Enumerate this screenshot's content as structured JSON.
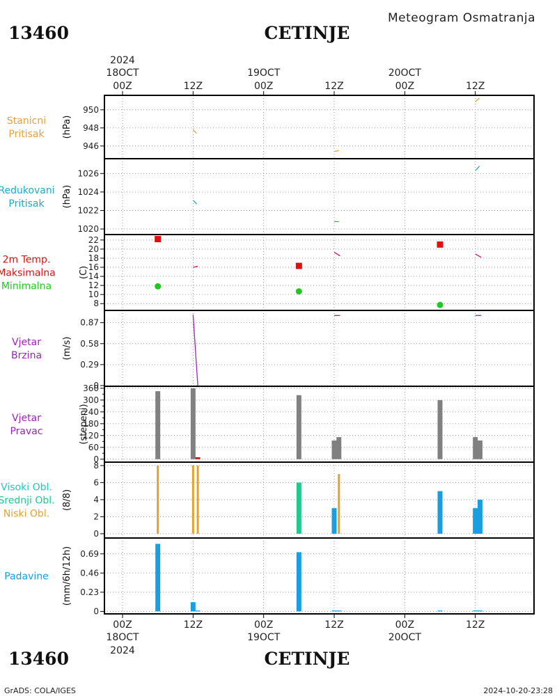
{
  "header": {
    "station_id": "13460",
    "station_name": "CETINJE",
    "product": "Meteogram Osmatranja"
  },
  "footer": {
    "station_id": "13460",
    "station_name": "CETINJE",
    "left": "GrADS: COLA/IGES",
    "right": "2024-10-20-23:28"
  },
  "time_axis": {
    "top_labels": [
      {
        "line1": "2024",
        "line2": "18OCT",
        "line3": "00Z"
      },
      {
        "line1": "",
        "line2": "",
        "line3": "12Z"
      },
      {
        "line1": "",
        "line2": "19OCT",
        "line3": "00Z"
      },
      {
        "line1": "",
        "line2": "",
        "line3": "12Z"
      },
      {
        "line1": "",
        "line2": "20OCT",
        "line3": "00Z"
      },
      {
        "line1": "",
        "line2": "",
        "line3": "12Z"
      }
    ],
    "bottom_labels": [
      {
        "line1": "00Z",
        "line2": "18OCT",
        "line3": "2024"
      },
      {
        "line1": "12Z",
        "line2": "",
        "line3": ""
      },
      {
        "line1": "00Z",
        "line2": "19OCT",
        "line3": ""
      },
      {
        "line1": "12Z",
        "line2": "",
        "line3": ""
      },
      {
        "line1": "00Z",
        "line2": "20OCT",
        "line3": ""
      },
      {
        "line1": "12Z",
        "line2": "",
        "line3": ""
      }
    ]
  },
  "colors": {
    "station_pressure": "#e6a040",
    "reduced_pressure": "#20a8c8",
    "tmax": "#e01010",
    "tmin": "#20c820",
    "temp_line": "#c81460",
    "wind_speed": "#a020c0",
    "wind_dir": "#808080",
    "high_cloud": "#20c8c8",
    "mid_cloud": "#20c890",
    "low_cloud": "#e6a030",
    "cloud_total": "#1a9ee0",
    "precip": "#1a9ee0"
  },
  "chart_data": [
    {
      "type": "line",
      "panel": "station_pressure",
      "labels": [
        "Stanicni",
        "Pritisak"
      ],
      "ylabel": "(hPa)",
      "yticks": [
        946,
        948,
        950
      ],
      "ylim": [
        944.6,
        951.6
      ],
      "x_unit": "hours since 2024-10-18 00Z",
      "series": [
        {
          "segments": [
            [
              [
                12.0,
                947.8
              ],
              [
                12.6,
                947.4
              ]
            ],
            [
              [
                36.0,
                945.4
              ],
              [
                36.8,
                945.5
              ]
            ],
            [
              [
                60.0,
                950.9
              ],
              [
                60.7,
                951.3
              ]
            ]
          ]
        }
      ]
    },
    {
      "type": "line",
      "panel": "reduced_pressure",
      "labels": [
        "Redukovani",
        "Pritisak"
      ],
      "ylabel": "(hPa)",
      "yticks": [
        1020,
        1022,
        1024,
        1026
      ],
      "ylim": [
        1019.4,
        1027.6
      ],
      "series": [
        {
          "segments": [
            [
              [
                12.0,
                1023.1
              ],
              [
                12.6,
                1022.7
              ]
            ],
            [
              [
                36.0,
                1020.8
              ],
              [
                36.8,
                1020.8
              ]
            ],
            [
              [
                60.0,
                1026.3
              ],
              [
                60.7,
                1026.8
              ]
            ]
          ]
        }
      ]
    },
    {
      "type": "scatter",
      "panel": "temperature",
      "labels": [
        "2m Temp.",
        "Maksimalna",
        "Minimalna"
      ],
      "ylabel": "(C)",
      "yticks": [
        8,
        10,
        12,
        14,
        16,
        18,
        20,
        22
      ],
      "ylim": [
        6.5,
        23.2
      ],
      "tmax": [
        [
          6,
          22.2
        ],
        [
          30,
          16.3
        ],
        [
          54,
          21.0
        ]
      ],
      "tmin": [
        [
          6,
          11.8
        ],
        [
          30,
          10.7
        ],
        [
          54,
          7.7
        ]
      ],
      "temp_segments": [
        [
          [
            12.0,
            16.0
          ],
          [
            12.8,
            16.2
          ]
        ],
        [
          [
            36.0,
            19.3
          ],
          [
            37.0,
            18.5
          ]
        ],
        [
          [
            60.0,
            18.9
          ],
          [
            61.0,
            18.2
          ]
        ]
      ]
    },
    {
      "type": "line",
      "panel": "wind_speed",
      "labels": [
        "Vjetar",
        "Brzina"
      ],
      "ylabel": "(m/s)",
      "yticks": [
        0,
        0.29,
        0.58,
        0.87
      ],
      "ytick_labels": [
        "0",
        "0.29",
        "0.58",
        "0.87"
      ],
      "ylim": [
        -0.01,
        1.04
      ],
      "segments": [
        [
          [
            12.0,
            0.98
          ],
          [
            12.8,
            0.0
          ]
        ],
        [
          [
            36.0,
            0.97
          ],
          [
            37.0,
            0.97
          ]
        ],
        [
          [
            60.0,
            0.97
          ],
          [
            61.0,
            0.97
          ]
        ]
      ]
    },
    {
      "type": "bar",
      "panel": "wind_direction",
      "labels": [
        "Vjetar",
        "Pravac"
      ],
      "ylabel": "(stepeni)",
      "yticks": [
        0,
        60,
        120,
        180,
        240,
        300,
        360
      ],
      "ytick_labels": [
        "0",
        "60",
        "120",
        "180",
        "240",
        "300",
        "360"
      ],
      "yticks_minor": [
        30,
        90,
        150,
        210,
        270,
        330
      ],
      "ylim": [
        -15,
        370
      ],
      "bars": [
        {
          "x": 6,
          "value": 345
        },
        {
          "x": 12,
          "value": 360
        },
        {
          "x": 12.8,
          "value": 10,
          "color_key": "tmax"
        },
        {
          "x": 30,
          "value": 325
        },
        {
          "x": 36,
          "value": 95
        },
        {
          "x": 36.8,
          "value": 112
        },
        {
          "x": 54,
          "value": 300
        },
        {
          "x": 60,
          "value": 112
        },
        {
          "x": 60.8,
          "value": 95
        }
      ]
    },
    {
      "type": "bar",
      "panel": "cloud_cover",
      "labels": [
        "Visoki Obl.",
        "Srednji Obl.",
        "Niski Obl."
      ],
      "ylabel": "(8/8)",
      "yticks": [
        0,
        2,
        4,
        6,
        8
      ],
      "ylim": [
        -0.5,
        8.4
      ],
      "bars": [
        {
          "x": 6,
          "value": 8,
          "color_key": "low_cloud",
          "thin": true
        },
        {
          "x": 12,
          "value": 8,
          "color_key": "low_cloud",
          "thin": true
        },
        {
          "x": 12.8,
          "value": 8,
          "color_key": "low_cloud",
          "thin": true
        },
        {
          "x": 30,
          "value": 6,
          "color_key": "mid_cloud"
        },
        {
          "x": 36,
          "value": 3,
          "color_key": "cloud_total"
        },
        {
          "x": 36.8,
          "value": 7,
          "color_key": "low_cloud",
          "thin": true
        },
        {
          "x": 54,
          "value": 5,
          "color_key": "cloud_total"
        },
        {
          "x": 60,
          "value": 3,
          "color_key": "cloud_total"
        },
        {
          "x": 60.8,
          "value": 4,
          "color_key": "cloud_total"
        }
      ]
    },
    {
      "type": "bar",
      "panel": "precipitation",
      "labels": [
        "Padavine"
      ],
      "ylabel": "(mm/6h/12h)",
      "yticks": [
        0,
        0.23,
        0.46,
        0.69
      ],
      "ytick_labels": [
        "0",
        "0.23",
        "0.46",
        "0.69"
      ],
      "ylim": [
        -0.03,
        0.88
      ],
      "bars": [
        {
          "x": 6,
          "value": 0.81
        },
        {
          "x": 12,
          "value": 0.11
        },
        {
          "x": 12.8,
          "value": 0.01
        },
        {
          "x": 30,
          "value": 0.71
        },
        {
          "x": 36,
          "value": 0.01
        },
        {
          "x": 36.8,
          "value": 0.01
        },
        {
          "x": 54,
          "value": 0.01
        },
        {
          "x": 60,
          "value": 0.01
        },
        {
          "x": 60.8,
          "value": 0.01
        }
      ]
    }
  ]
}
